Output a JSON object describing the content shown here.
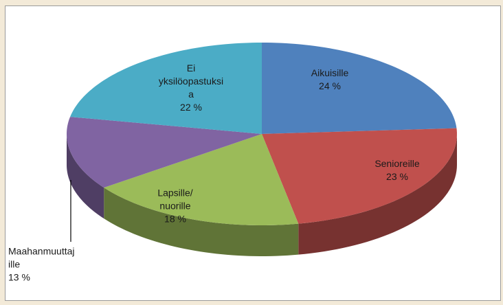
{
  "chart_data": {
    "type": "pie3d",
    "categories": [
      "Aikuisille",
      "Senioreille",
      "Lapsille/\nnuorille",
      "Maahanmuuttaj\nille",
      "Ei\nyksilöopastuksi\na"
    ],
    "values": [
      24,
      23,
      18,
      13,
      22
    ],
    "value_labels": [
      "24 %",
      "23 %",
      "18 %",
      "13 %",
      "22 %"
    ],
    "colors": [
      "#4f81bd",
      "#c0504d",
      "#9bbb59",
      "#8064a2",
      "#4bacc6"
    ],
    "start_angle": 0,
    "direction": "clockwise"
  }
}
